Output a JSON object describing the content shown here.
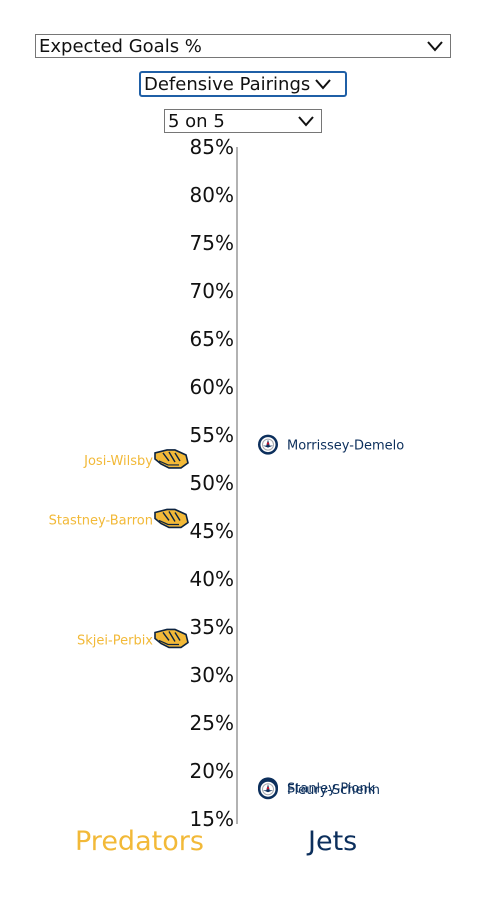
{
  "controls": {
    "metric": {
      "value": "Expected Goals %"
    },
    "grouping": {
      "value": "Defensive Pairings"
    },
    "strength": {
      "value": "5 on 5"
    }
  },
  "chart_data": {
    "type": "scatter",
    "ylim": [
      15,
      85
    ],
    "yticks": [
      "85%",
      "80%",
      "75%",
      "70%",
      "65%",
      "60%",
      "55%",
      "50%",
      "45%",
      "40%",
      "35%",
      "30%",
      "25%",
      "20%",
      "15%"
    ],
    "ytick_values": [
      85,
      80,
      75,
      70,
      65,
      60,
      55,
      50,
      45,
      40,
      35,
      30,
      25,
      20,
      15
    ],
    "series": [
      {
        "name": "Predators",
        "color": "#f2b938",
        "icon": "predators-logo-icon",
        "points": [
          {
            "label": "Josi-Wilsby",
            "y": 52.4
          },
          {
            "label": "Stastney-Barron",
            "y": 46.2
          },
          {
            "label": "Skjei-Perbix",
            "y": 33.7
          }
        ]
      },
      {
        "name": "Jets",
        "color": "#0c2f5c",
        "icon": "jets-logo-icon",
        "points": [
          {
            "label": "Morrissey-Demelo",
            "y": 54.0
          },
          {
            "label": "Stanley-Pionk",
            "y": 18.3
          },
          {
            "label": "Fleury-Schenn",
            "y": 18.1
          }
        ]
      }
    ]
  }
}
